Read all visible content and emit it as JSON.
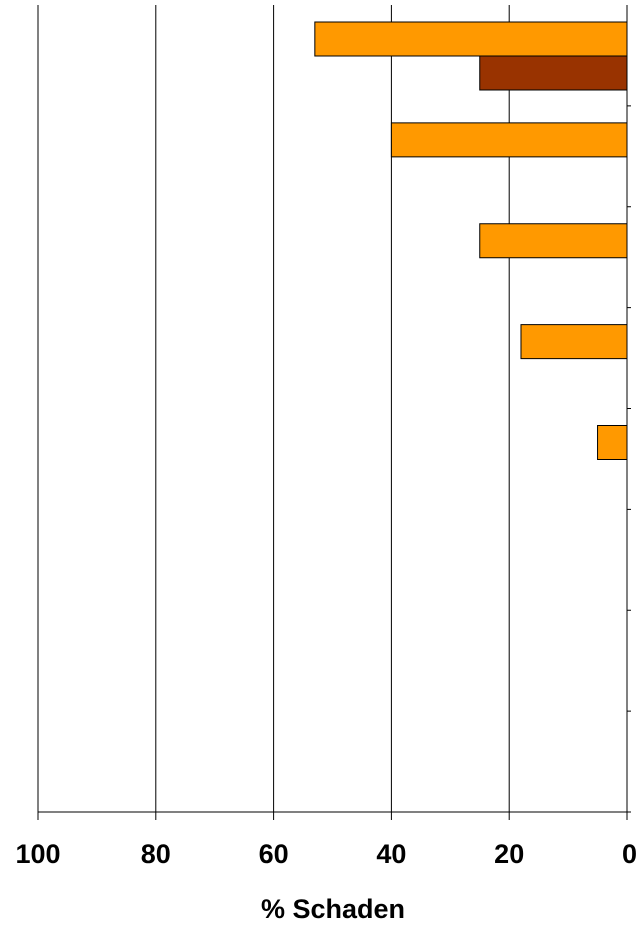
{
  "chart_data": {
    "type": "bar",
    "orientation": "horizontal",
    "x_reversed": true,
    "xlabel": "% Schaden",
    "xlim": [
      0,
      100
    ],
    "x_ticks": [
      "100",
      "80",
      "60",
      "40",
      "20",
      "0"
    ],
    "x_tick_values": [
      100,
      80,
      60,
      40,
      20,
      0
    ],
    "category_slots": 8,
    "grid": "vertical",
    "legend": "none",
    "colors": {
      "series_a": "#FF9900",
      "series_b": "#993300"
    },
    "series": [
      {
        "values": [
          53,
          40,
          25,
          18,
          5,
          null,
          null,
          null
        ],
        "color": "#FF9900"
      },
      {
        "values": [
          25,
          null,
          null,
          null,
          null,
          null,
          null,
          null
        ],
        "color": "#993300"
      }
    ]
  }
}
